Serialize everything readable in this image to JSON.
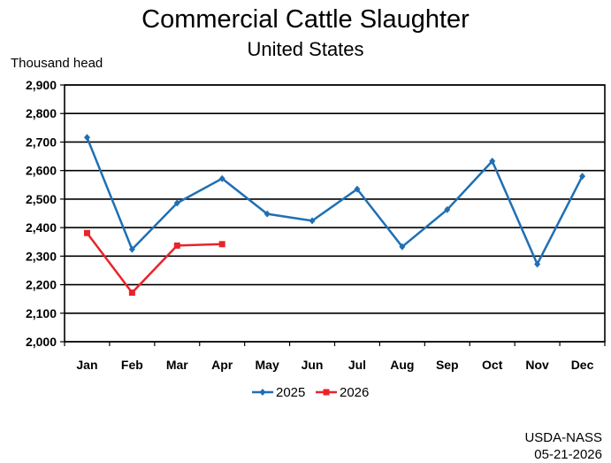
{
  "title": "Commercial Cattle Slaughter",
  "subtitle": "United States",
  "y_unit_label": "Thousand head",
  "credit": {
    "source": "USDA-NASS",
    "date": "05-21-2026"
  },
  "chart_data": {
    "type": "line",
    "title": "Commercial Cattle Slaughter",
    "subtitle": "United States",
    "ylabel": "Thousand head",
    "xlabel": "",
    "categories": [
      "Jan",
      "Feb",
      "Mar",
      "Apr",
      "May",
      "Jun",
      "Jul",
      "Aug",
      "Sep",
      "Oct",
      "Nov",
      "Dec"
    ],
    "ylim": [
      2000,
      2900
    ],
    "yticks": [
      2000,
      2100,
      2200,
      2300,
      2400,
      2500,
      2600,
      2700,
      2800,
      2900
    ],
    "ytick_labels": [
      "2,000",
      "2,100",
      "2,200",
      "2,300",
      "2,400",
      "2,500",
      "2,600",
      "2,700",
      "2,800",
      "2,900"
    ],
    "grid": true,
    "legend_position": "bottom",
    "series": [
      {
        "name": "2025",
        "color": "#1f6fb4",
        "marker": "diamond",
        "values": [
          2716,
          2324,
          2486,
          2572,
          2448,
          2424,
          2535,
          2333,
          2463,
          2633,
          2272,
          2580
        ]
      },
      {
        "name": "2026",
        "color": "#e8242a",
        "marker": "square",
        "values": [
          2381,
          2172,
          2337,
          2342,
          null,
          null,
          null,
          null,
          null,
          null,
          null,
          null
        ]
      }
    ]
  }
}
